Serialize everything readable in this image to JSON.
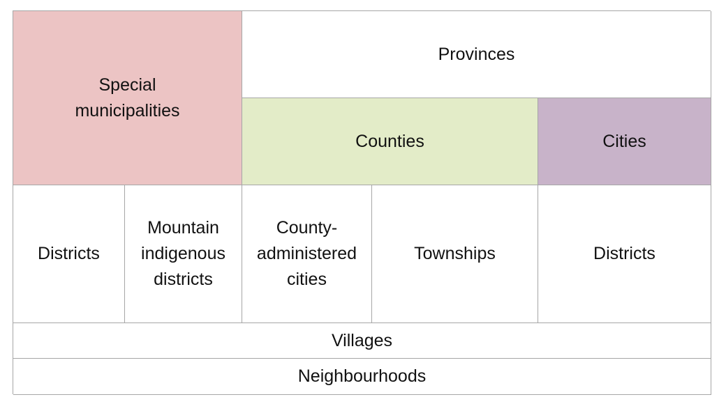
{
  "hierarchy": {
    "special_municipalities": "Special\nmunicipalities",
    "provinces": "Provinces",
    "counties": "Counties",
    "cities": "Cities",
    "districts_left": "Districts",
    "mountain_indigenous_districts": "Mountain\nindigenous\ndistricts",
    "county_administered_cities": "County-\nadministered\ncities",
    "townships": "Townships",
    "districts_right": "Districts",
    "villages": "Villages",
    "neighbourhoods": "Neighbourhoods"
  },
  "colors": {
    "special_municipalities": "#ecc4c4",
    "counties": "#e3ecc8",
    "cities": "#c8b3c9",
    "border": "#a6a6a6"
  }
}
